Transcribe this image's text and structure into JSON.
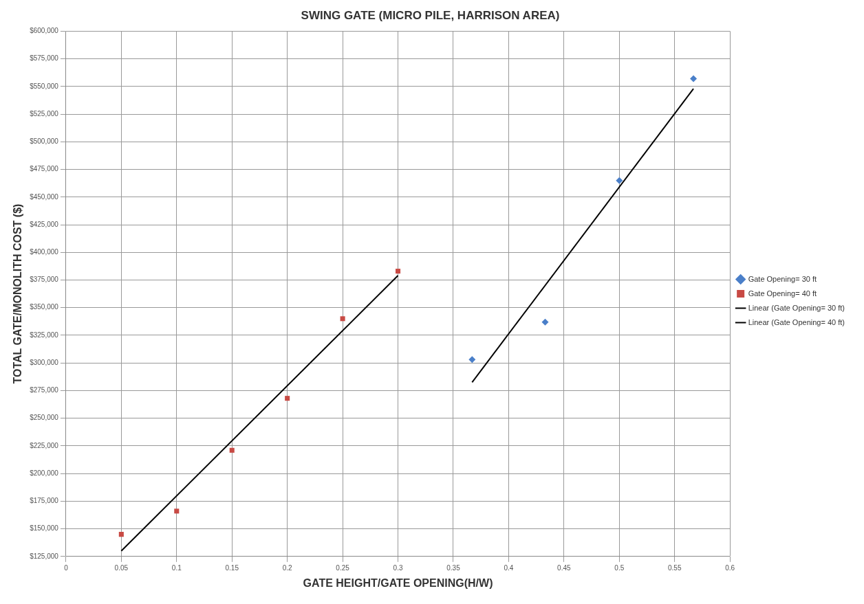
{
  "chart_data": {
    "type": "scatter",
    "title": "SWING GATE (MICRO PILE, HARRISON AREA)",
    "xlabel": "GATE HEIGHT/GATE OPENING(H/W)",
    "ylabel": "TOTAL GATE/MONOLITH COST ($)",
    "xlim": [
      0,
      0.6
    ],
    "xticks": [
      0,
      0.05,
      0.1,
      0.15,
      0.2,
      0.25,
      0.3,
      0.35,
      0.4,
      0.45,
      0.5,
      0.55,
      0.6
    ],
    "ylim": [
      125000,
      600000
    ],
    "yticks": [
      {
        "value": 125000,
        "label": "$125,000"
      },
      {
        "value": 150000,
        "label": "$150,000"
      },
      {
        "value": 175000,
        "label": "$175,000"
      },
      {
        "value": 200000,
        "label": "$200,000"
      },
      {
        "value": 225000,
        "label": "$225,000"
      },
      {
        "value": 250000,
        "label": "$250,000"
      },
      {
        "value": 275000,
        "label": "$275,000"
      },
      {
        "value": 300000,
        "label": "$300,000"
      },
      {
        "value": 325000,
        "label": "$325,000"
      },
      {
        "value": 350000,
        "label": "$350,000"
      },
      {
        "value": 375000,
        "label": "$375,000"
      },
      {
        "value": 400000,
        "label": "$400,000"
      },
      {
        "value": 425000,
        "label": "$425,000"
      },
      {
        "value": 450000,
        "label": "$450,000"
      },
      {
        "value": 475000,
        "label": "$475,000"
      },
      {
        "value": 500000,
        "label": "$500,000"
      },
      {
        "value": 525000,
        "label": "$525,000"
      },
      {
        "value": 550000,
        "label": "$550,000"
      },
      {
        "value": 575000,
        "label": "$575,000"
      },
      {
        "value": 600000,
        "label": "$600,000"
      }
    ],
    "grid": true,
    "legend": "right",
    "series": [
      {
        "name": "Gate Opening= 30 ft",
        "type": "scatter",
        "marker": "diamond",
        "color": "#4a7fc9",
        "x": [
          0.367,
          0.433,
          0.5,
          0.567
        ],
        "values": [
          303000,
          337000,
          465000,
          557000
        ]
      },
      {
        "name": "Gate Opening= 40 ft",
        "type": "scatter",
        "marker": "square",
        "color": "#c84a44",
        "x": [
          0.05,
          0.1,
          0.15,
          0.2,
          0.25,
          0.3
        ],
        "values": [
          145000,
          166000,
          221000,
          268000,
          340000,
          383000
        ]
      },
      {
        "name": "Linear (Gate Opening= 30 ft)",
        "type": "line",
        "marker": "none",
        "color": "#000000",
        "x": [
          0.367,
          0.567
        ],
        "values": [
          282500,
          548000
        ]
      },
      {
        "name": "Linear (Gate Opening= 40 ft)",
        "type": "line",
        "marker": "none",
        "color": "#000000",
        "x": [
          0.05,
          0.3
        ],
        "values": [
          130000,
          379000
        ]
      }
    ]
  }
}
